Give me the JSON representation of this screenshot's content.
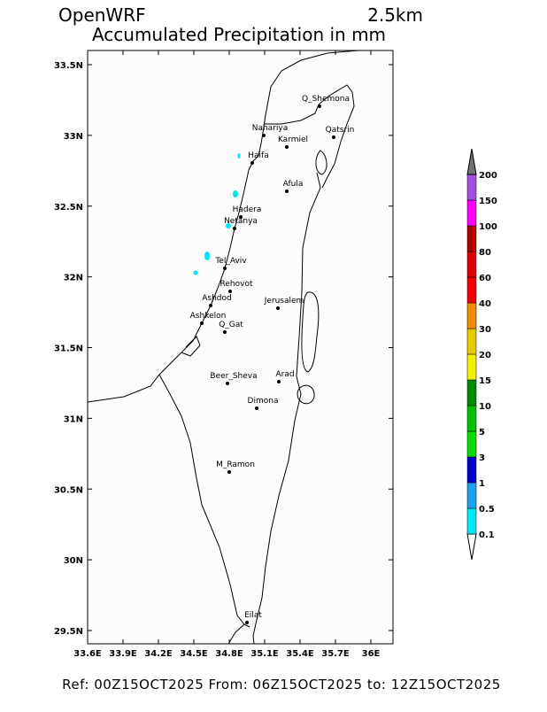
{
  "header": {
    "model": "OpenWRF",
    "resolution": "2.5km",
    "title": "Accumulated Precipitation in mm"
  },
  "map": {
    "lon_ticks": [
      {
        "value": 33.6,
        "label": "33.6E"
      },
      {
        "value": 33.9,
        "label": "33.9E"
      },
      {
        "value": 34.2,
        "label": "34.2E"
      },
      {
        "value": 34.5,
        "label": "34.5E"
      },
      {
        "value": 34.8,
        "label": "34.8E"
      },
      {
        "value": 35.1,
        "label": "35.1E"
      },
      {
        "value": 35.4,
        "label": "35.4E"
      },
      {
        "value": 35.7,
        "label": "35.7E"
      },
      {
        "value": 36,
        "label": "36E"
      }
    ],
    "lat_ticks": [
      {
        "value": 33.5,
        "label": "33.5N"
      },
      {
        "value": 33,
        "label": "33N"
      },
      {
        "value": 32.5,
        "label": "32.5N"
      },
      {
        "value": 32,
        "label": "32N"
      },
      {
        "value": 31.5,
        "label": "31.5N"
      },
      {
        "value": 31,
        "label": "31N"
      },
      {
        "value": 30.5,
        "label": "30.5N"
      },
      {
        "value": 30,
        "label": "30N"
      },
      {
        "value": 29.5,
        "label": "29.5N"
      }
    ],
    "cities": [
      "Q_Shemona",
      "Nahariya",
      "Karmiel",
      "Qatsrin",
      "Haifa",
      "Afula",
      "Hadera",
      "Netanya",
      "Tel_Aviv",
      "Rehovot",
      "Ashdod",
      "Jerusalem",
      "Ashkelon",
      "Q_Gat",
      "Beer_Sheva",
      "Arad",
      "Dimona",
      "M_Ramon",
      "Eilat"
    ]
  },
  "colorbar": {
    "levels": [
      0.1,
      0.5,
      1,
      3,
      5,
      10,
      15,
      20,
      30,
      40,
      60,
      80,
      100,
      150,
      200
    ],
    "below_color": "#ffffff",
    "colors": [
      "#00e6f0",
      "#1ea0f0",
      "#0000cd",
      "#00dc00",
      "#00c000",
      "#008c00",
      "#f0f000",
      "#e6c800",
      "#f08c00",
      "#f00000",
      "#dc0000",
      "#b40000",
      "#ff00ff",
      "#a050dc"
    ],
    "above_color": "#707070"
  },
  "footer": "Ref: 00Z15OCT2025  From: 06Z15OCT2025  to: 12Z15OCT2025"
}
